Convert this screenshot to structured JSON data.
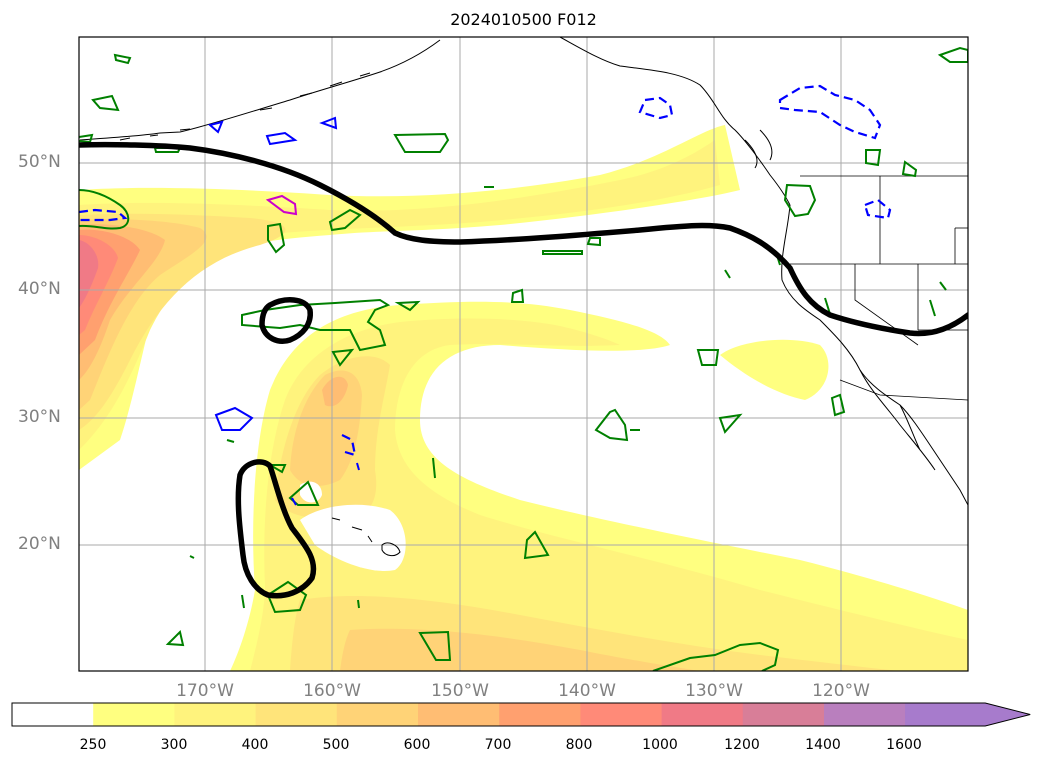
{
  "map": {
    "title": "2024010500 F012",
    "lat_labels": [
      "50°N",
      "40°N",
      "30°N",
      "20°N"
    ],
    "lon_labels": [
      "170°W",
      "160°W",
      "150°W",
      "140°W",
      "130°W",
      "120°W"
    ],
    "colorbar": {
      "ticks": [
        "250",
        "300",
        "400",
        "500",
        "600",
        "700",
        "800",
        "1000",
        "1200",
        "1400",
        "1600"
      ],
      "colors": [
        "#ffffff",
        "#ffff80",
        "#fff37d",
        "#ffe47a",
        "#ffd377",
        "#ffbd73",
        "#ffa06f",
        "#ff8a78",
        "#f07a86",
        "#d87e98",
        "#b97fbe",
        "#a77bcc"
      ],
      "extend": "max"
    },
    "contour_colors": {
      "jet": "#000000",
      "green": "#008000",
      "blue": "#0000ff",
      "magenta": "#cc00cc",
      "coast": "#000000"
    }
  }
}
